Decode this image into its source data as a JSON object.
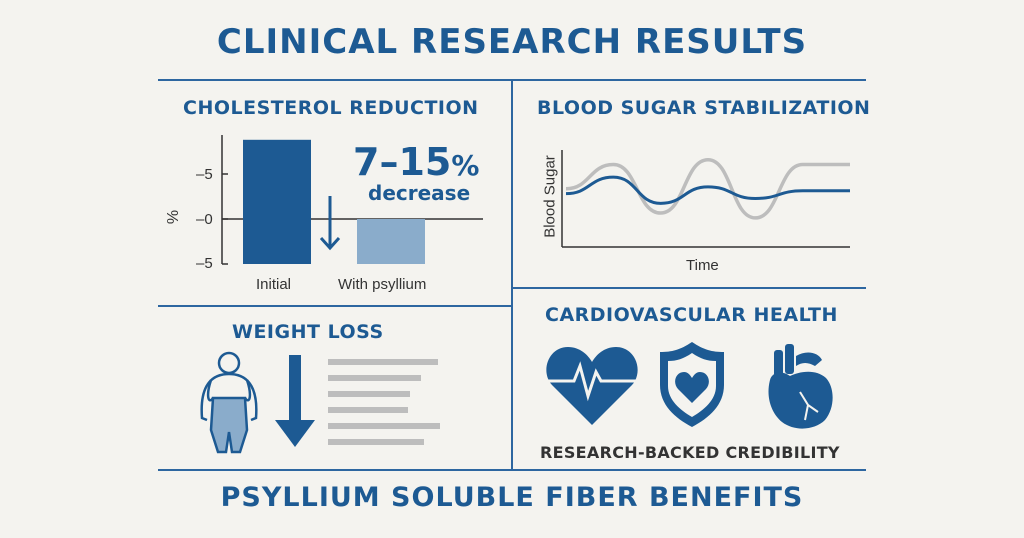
{
  "title": "CLINICAL RESEARCH RESULTS",
  "footer": "PSYLLIUM SOLUBLE FIBER BENEFITS",
  "colors": {
    "primary": "#1d5a93",
    "light_bar": "#8aaccb",
    "grey": "#bdbdbd",
    "background": "#f4f3ef"
  },
  "cholesterol": {
    "heading": "CHOLESTEROL REDUCTION",
    "big_value": "7–15",
    "big_unit": "%",
    "caption": "decrease"
  },
  "blood_sugar": {
    "heading": "BLOOD SUGAR STABILIZATION"
  },
  "weight_loss": {
    "heading": "WEIGHT LOSS",
    "icons": [
      "person-icon",
      "down-arrow-icon"
    ]
  },
  "cardio": {
    "heading": "CARDIOVASCULAR HEALTH",
    "caption": "RESEARCH-BACKED CREDIBILITY",
    "icons": [
      "heart-pulse-icon",
      "shield-heart-icon",
      "anatomical-heart-icon"
    ]
  },
  "chart_data": [
    {
      "type": "bar",
      "ylabel": "%",
      "categories": [
        "Initial",
        "With psyllium"
      ],
      "ticks": [
        {
          "value": 5,
          "label": "–5"
        },
        {
          "value": 0,
          "label": "–0"
        },
        {
          "value": -5,
          "label": "–5"
        }
      ],
      "bars": [
        {
          "category": "Initial",
          "from": -5,
          "to": 8.8
        },
        {
          "category": "With psyllium",
          "from": -5,
          "to": 0
        }
      ],
      "ylim": [
        -5,
        9.5
      ],
      "annotation": "7–15% decrease"
    },
    {
      "type": "line",
      "xlabel": "Time",
      "ylabel": "Blood Sugar",
      "series": [
        {
          "color": "#bdbdbd",
          "values": [
            0.6,
            0.85,
            0.35,
            0.9,
            0.3,
            0.85,
            0.85
          ]
        },
        {
          "color": "#1d5a93",
          "values": [
            0.55,
            0.72,
            0.45,
            0.62,
            0.5,
            0.58,
            0.58
          ]
        }
      ]
    }
  ]
}
